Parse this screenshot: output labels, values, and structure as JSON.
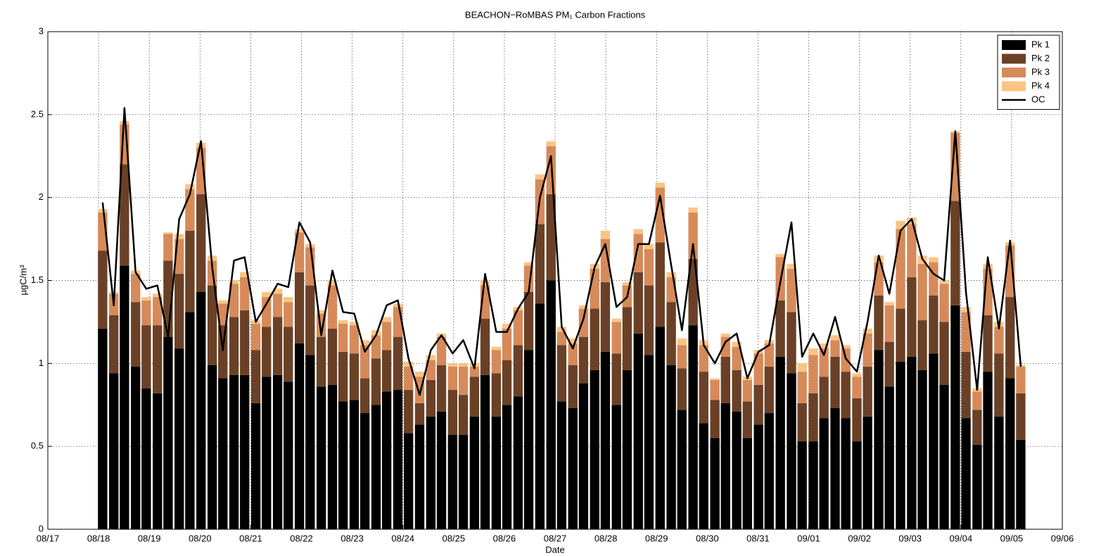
{
  "chart_data": {
    "type": "bar",
    "stacked": true,
    "title": "BEACHON−RoMBAS PM₁ Carbon Fractions",
    "x_label": "Date",
    "y_label": "µgC/m³",
    "xlim": [
      0,
      20
    ],
    "xticks": [
      {
        "value": 0,
        "label": "08/17"
      },
      {
        "value": 1,
        "label": "08/18"
      },
      {
        "value": 2,
        "label": "08/19"
      },
      {
        "value": 3,
        "label": "08/20"
      },
      {
        "value": 4,
        "label": "08/21"
      },
      {
        "value": 5,
        "label": "08/22"
      },
      {
        "value": 6,
        "label": "08/23"
      },
      {
        "value": 7,
        "label": "08/24"
      },
      {
        "value": 8,
        "label": "08/25"
      },
      {
        "value": 9,
        "label": "08/26"
      },
      {
        "value": 10,
        "label": "08/27"
      },
      {
        "value": 11,
        "label": "08/28"
      },
      {
        "value": 12,
        "label": "08/29"
      },
      {
        "value": 13,
        "label": "08/30"
      },
      {
        "value": 14,
        "label": "08/31"
      },
      {
        "value": 15,
        "label": "09/01"
      },
      {
        "value": 16,
        "label": "09/02"
      },
      {
        "value": 17,
        "label": "09/03"
      },
      {
        "value": 18,
        "label": "09/04"
      },
      {
        "value": 19,
        "label": "09/05"
      },
      {
        "value": 20,
        "label": "09/06"
      }
    ],
    "ylim": [
      0,
      3
    ],
    "yticks": [
      0,
      0.5,
      1,
      1.5,
      2,
      2.5,
      3
    ],
    "grid": true,
    "legend": "upper right",
    "x": [
      1.08,
      1.3,
      1.51,
      1.73,
      1.94,
      2.16,
      2.37,
      2.59,
      2.8,
      3.02,
      3.24,
      3.45,
      3.67,
      3.88,
      4.1,
      4.31,
      4.53,
      4.74,
      4.96,
      5.17,
      5.39,
      5.61,
      5.82,
      6.04,
      6.25,
      6.47,
      6.68,
      6.9,
      7.11,
      7.33,
      7.55,
      7.76,
      7.98,
      8.19,
      8.41,
      8.62,
      8.84,
      9.05,
      9.27,
      9.48,
      9.7,
      9.92,
      10.13,
      10.35,
      10.56,
      10.78,
      10.99,
      11.21,
      11.42,
      11.64,
      11.85,
      12.07,
      12.29,
      12.5,
      12.72,
      12.93,
      13.15,
      13.36,
      13.58,
      13.79,
      14.01,
      14.22,
      14.44,
      14.66,
      14.87,
      15.09,
      15.3,
      15.52,
      15.73,
      15.95,
      16.16,
      16.38,
      16.59,
      16.81,
      17.03,
      17.24,
      17.46,
      17.67,
      17.89,
      18.1,
      18.32,
      18.53,
      18.75,
      18.97,
      19.18
    ],
    "series": [
      {
        "name": "Pk 1",
        "type": "bar",
        "color": "#000000",
        "values": [
          1.21,
          0.94,
          1.59,
          0.98,
          0.85,
          0.82,
          1.16,
          1.09,
          1.31,
          1.43,
          0.99,
          0.91,
          0.93,
          0.93,
          0.76,
          0.92,
          0.93,
          0.89,
          1.12,
          1.05,
          0.86,
          0.87,
          0.77,
          0.78,
          0.7,
          0.75,
          0.83,
          0.84,
          0.58,
          0.63,
          0.68,
          0.71,
          0.57,
          0.57,
          0.68,
          0.93,
          0.68,
          0.75,
          0.8,
          1.08,
          1.36,
          1.5,
          0.77,
          0.73,
          0.88,
          0.96,
          1.07,
          0.75,
          0.96,
          1.18,
          1.05,
          1.22,
          0.99,
          0.72,
          1.23,
          0.64,
          0.55,
          0.76,
          0.71,
          0.55,
          0.63,
          0.7,
          1.04,
          0.94,
          0.53,
          0.53,
          0.67,
          0.73,
          0.67,
          0.53,
          0.68,
          1.08,
          0.86,
          1.01,
          1.04,
          0.96,
          1.06,
          0.87,
          1.35,
          0.67,
          0.51,
          0.95,
          0.68,
          0.91,
          0.54
        ]
      },
      {
        "name": "Pk 2",
        "type": "bar",
        "color": "#6a4126",
        "values": [
          0.47,
          0.35,
          0.61,
          0.39,
          0.38,
          0.41,
          0.46,
          0.45,
          0.49,
          0.59,
          0.48,
          0.32,
          0.35,
          0.39,
          0.32,
          0.3,
          0.35,
          0.33,
          0.43,
          0.42,
          0.3,
          0.34,
          0.3,
          0.28,
          0.21,
          0.28,
          0.25,
          0.32,
          0.26,
          0.13,
          0.22,
          0.28,
          0.27,
          0.24,
          0.24,
          0.34,
          0.26,
          0.27,
          0.31,
          0.35,
          0.48,
          0.52,
          0.34,
          0.26,
          0.28,
          0.37,
          0.42,
          0.31,
          0.38,
          0.37,
          0.42,
          0.51,
          0.38,
          0.25,
          0.4,
          0.31,
          0.23,
          0.28,
          0.25,
          0.22,
          0.24,
          0.28,
          0.34,
          0.37,
          0.23,
          0.29,
          0.25,
          0.31,
          0.28,
          0.26,
          0.3,
          0.33,
          0.27,
          0.32,
          0.48,
          0.3,
          0.35,
          0.38,
          0.63,
          0.4,
          0.21,
          0.34,
          0.38,
          0.49,
          0.28
        ]
      },
      {
        "name": "Pk 3",
        "type": "bar",
        "color": "#d68a5a",
        "values": [
          0.23,
          0.13,
          0.24,
          0.17,
          0.15,
          0.17,
          0.16,
          0.21,
          0.25,
          0.28,
          0.15,
          0.13,
          0.2,
          0.2,
          0.16,
          0.18,
          0.14,
          0.15,
          0.24,
          0.23,
          0.14,
          0.26,
          0.17,
          0.17,
          0.2,
          0.14,
          0.17,
          0.18,
          0.14,
          0.16,
          0.12,
          0.17,
          0.14,
          0.17,
          0.06,
          0.2,
          0.14,
          0.19,
          0.21,
          0.16,
          0.27,
          0.29,
          0.08,
          0.13,
          0.17,
          0.24,
          0.26,
          0.19,
          0.13,
          0.23,
          0.22,
          0.33,
          0.15,
          0.14,
          0.28,
          0.16,
          0.12,
          0.12,
          0.14,
          0.13,
          0.19,
          0.14,
          0.26,
          0.26,
          0.19,
          0.23,
          0.17,
          0.1,
          0.14,
          0.13,
          0.2,
          0.2,
          0.22,
          0.48,
          0.32,
          0.34,
          0.2,
          0.23,
          0.41,
          0.24,
          0.11,
          0.28,
          0.16,
          0.31,
          0.16
        ]
      },
      {
        "name": "Pk 4",
        "type": "bar",
        "color": "#fbc484",
        "values": [
          0.02,
          0.01,
          0.02,
          0.02,
          0.02,
          0.02,
          0.01,
          0.03,
          0.03,
          0.03,
          0.03,
          0.02,
          0.02,
          0.03,
          0.02,
          0.03,
          0.03,
          0.03,
          0.02,
          0.02,
          0.02,
          0.03,
          0.02,
          0.02,
          0.03,
          0.03,
          0.03,
          0.02,
          0.03,
          0.03,
          0.03,
          0.02,
          0.02,
          0.02,
          0.02,
          0.03,
          0.02,
          0.03,
          0.02,
          0.02,
          0.03,
          0.03,
          0.03,
          0.03,
          0.02,
          0.03,
          0.05,
          0.02,
          0.02,
          0.03,
          0.03,
          0.03,
          0.03,
          0.04,
          0.03,
          0.03,
          0.01,
          0.02,
          0.03,
          0.02,
          0.02,
          0.02,
          0.02,
          0.03,
          0.05,
          0.04,
          0.03,
          0.03,
          0.02,
          0.02,
          0.03,
          0.04,
          0.02,
          0.05,
          0.04,
          0.05,
          0.03,
          0.02,
          0.01,
          0.03,
          0.02,
          0.03,
          0.03,
          0.02,
          0.01
        ]
      },
      {
        "name": "OC",
        "type": "line",
        "color": "#000000",
        "values": [
          1.97,
          1.35,
          2.54,
          1.55,
          1.45,
          1.47,
          1.16,
          1.87,
          2.02,
          2.34,
          1.58,
          1.08,
          1.62,
          1.64,
          1.25,
          1.36,
          1.48,
          1.46,
          1.85,
          1.73,
          1.17,
          1.56,
          1.31,
          1.3,
          1.07,
          1.17,
          1.35,
          1.38,
          1.03,
          0.81,
          1.08,
          1.17,
          1.06,
          1.14,
          0.97,
          1.54,
          1.19,
          1.19,
          1.33,
          1.43,
          2.0,
          2.25,
          1.22,
          1.09,
          1.27,
          1.58,
          1.72,
          1.34,
          1.4,
          1.72,
          1.72,
          2.01,
          1.59,
          1.2,
          1.72,
          1.11,
          1.0,
          1.13,
          1.18,
          0.91,
          1.07,
          1.11,
          1.49,
          1.85,
          1.04,
          1.18,
          1.05,
          1.28,
          1.03,
          0.95,
          1.25,
          1.65,
          1.42,
          1.8,
          1.87,
          1.63,
          1.54,
          1.5,
          2.4,
          1.43,
          0.84,
          1.64,
          1.21,
          1.74,
          0.98
        ]
      }
    ]
  }
}
